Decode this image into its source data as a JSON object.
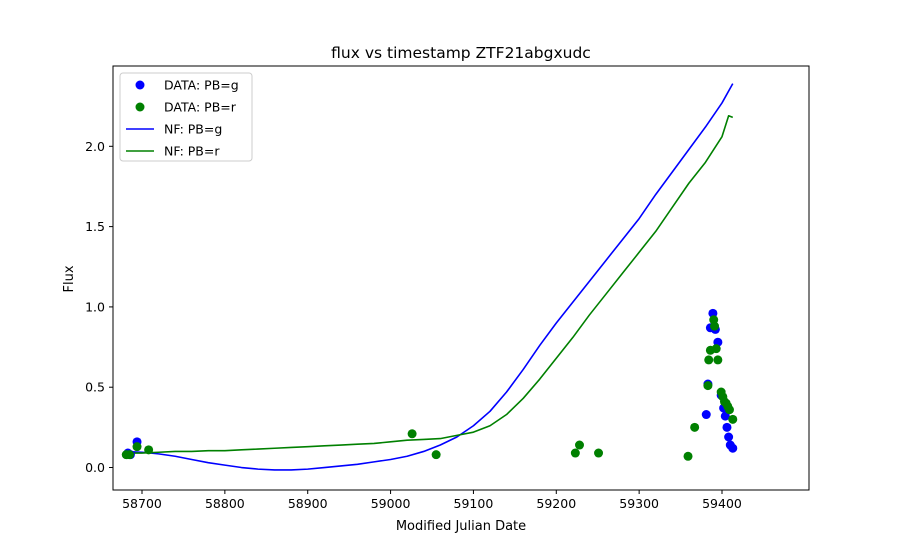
{
  "chart_data": {
    "type": "scatter",
    "title": "flux vs timestamp ZTF21abgxudc",
    "xlabel": "Modified Julian Date",
    "ylabel": "Flux",
    "xlim": [
      58665,
      59505
    ],
    "ylim": [
      -0.14,
      2.5
    ],
    "xticks": [
      58700,
      58800,
      58900,
      59000,
      59100,
      59200,
      59300,
      59400
    ],
    "xtick_labels": [
      "58700",
      "58800",
      "58900",
      "59000",
      "59100",
      "59200",
      "59300",
      "59400"
    ],
    "yticks": [
      0.0,
      0.5,
      1.0,
      1.5,
      2.0
    ],
    "ytick_labels": [
      "0.0",
      "0.5",
      "1.0",
      "1.5",
      "2.0"
    ],
    "grid": false,
    "legend_position": "top-left",
    "legend": [
      {
        "label": "DATA: PB=g",
        "kind": "marker",
        "color": "#0000ff"
      },
      {
        "label": "DATA: PB=r",
        "kind": "marker",
        "color": "#008000"
      },
      {
        "label": "NF: PB=g",
        "kind": "line",
        "color": "#0000ff"
      },
      {
        "label": "NF: PB=r",
        "kind": "line",
        "color": "#008000"
      }
    ],
    "series": [
      {
        "name": "DATA: PB=g",
        "kind": "scatter",
        "color": "#0000ff",
        "points": [
          [
            58683,
            0.09
          ],
          [
            58686,
            0.08
          ],
          [
            58694,
            0.16
          ],
          [
            59381,
            0.33
          ],
          [
            59383,
            0.52
          ],
          [
            59386,
            0.87
          ],
          [
            59389,
            0.96
          ],
          [
            59392,
            0.86
          ],
          [
            59395,
            0.78
          ],
          [
            59399,
            0.45
          ],
          [
            59402,
            0.37
          ],
          [
            59404,
            0.32
          ],
          [
            59406,
            0.25
          ],
          [
            59408,
            0.19
          ],
          [
            59410,
            0.14
          ],
          [
            59413,
            0.12
          ]
        ]
      },
      {
        "name": "DATA: PB=r",
        "kind": "scatter",
        "color": "#008000",
        "points": [
          [
            58681,
            0.08
          ],
          [
            58685,
            0.08
          ],
          [
            58694,
            0.13
          ],
          [
            58708,
            0.11
          ],
          [
            59026,
            0.21
          ],
          [
            59055,
            0.08
          ],
          [
            59223,
            0.09
          ],
          [
            59228,
            0.14
          ],
          [
            59251,
            0.09
          ],
          [
            59359,
            0.07
          ],
          [
            59367,
            0.25
          ],
          [
            59383,
            0.51
          ],
          [
            59384,
            0.67
          ],
          [
            59386,
            0.73
          ],
          [
            59390,
            0.92
          ],
          [
            59391,
            0.88
          ],
          [
            59393,
            0.74
          ],
          [
            59395,
            0.67
          ],
          [
            59399,
            0.47
          ],
          [
            59401,
            0.44
          ],
          [
            59403,
            0.41
          ],
          [
            59405,
            0.4
          ],
          [
            59407,
            0.38
          ],
          [
            59409,
            0.36
          ],
          [
            59413,
            0.3
          ]
        ]
      },
      {
        "name": "NF: PB=g",
        "kind": "line",
        "color": "#0000ff",
        "points": [
          [
            58680,
            0.1
          ],
          [
            58700,
            0.095
          ],
          [
            58720,
            0.085
          ],
          [
            58740,
            0.07
          ],
          [
            58760,
            0.05
          ],
          [
            58780,
            0.03
          ],
          [
            58800,
            0.015
          ],
          [
            58820,
            0.0
          ],
          [
            58840,
            -0.01
          ],
          [
            58860,
            -0.015
          ],
          [
            58880,
            -0.015
          ],
          [
            58900,
            -0.01
          ],
          [
            58920,
            0.0
          ],
          [
            58940,
            0.01
          ],
          [
            58960,
            0.02
          ],
          [
            58980,
            0.035
          ],
          [
            59000,
            0.05
          ],
          [
            59020,
            0.07
          ],
          [
            59040,
            0.1
          ],
          [
            59060,
            0.14
          ],
          [
            59080,
            0.19
          ],
          [
            59100,
            0.26
          ],
          [
            59120,
            0.35
          ],
          [
            59140,
            0.47
          ],
          [
            59160,
            0.61
          ],
          [
            59180,
            0.76
          ],
          [
            59200,
            0.9
          ],
          [
            59220,
            1.03
          ],
          [
            59240,
            1.16
          ],
          [
            59260,
            1.29
          ],
          [
            59280,
            1.42
          ],
          [
            59300,
            1.55
          ],
          [
            59320,
            1.7
          ],
          [
            59340,
            1.84
          ],
          [
            59360,
            1.98
          ],
          [
            59380,
            2.12
          ],
          [
            59400,
            2.27
          ],
          [
            59413,
            2.39
          ]
        ]
      },
      {
        "name": "NF: PB=r",
        "kind": "line",
        "color": "#008000",
        "points": [
          [
            58680,
            0.09
          ],
          [
            58700,
            0.09
          ],
          [
            58720,
            0.095
          ],
          [
            58740,
            0.1
          ],
          [
            58760,
            0.1
          ],
          [
            58780,
            0.105
          ],
          [
            58800,
            0.105
          ],
          [
            58820,
            0.11
          ],
          [
            58840,
            0.115
          ],
          [
            58860,
            0.12
          ],
          [
            58880,
            0.125
          ],
          [
            58900,
            0.13
          ],
          [
            58920,
            0.135
          ],
          [
            58940,
            0.14
          ],
          [
            58960,
            0.145
          ],
          [
            58980,
            0.15
          ],
          [
            59000,
            0.16
          ],
          [
            59020,
            0.17
          ],
          [
            59040,
            0.175
          ],
          [
            59060,
            0.18
          ],
          [
            59080,
            0.2
          ],
          [
            59100,
            0.22
          ],
          [
            59120,
            0.26
          ],
          [
            59140,
            0.33
          ],
          [
            59160,
            0.43
          ],
          [
            59180,
            0.55
          ],
          [
            59200,
            0.68
          ],
          [
            59220,
            0.81
          ],
          [
            59240,
            0.95
          ],
          [
            59260,
            1.08
          ],
          [
            59280,
            1.21
          ],
          [
            59300,
            1.34
          ],
          [
            59320,
            1.47
          ],
          [
            59340,
            1.62
          ],
          [
            59360,
            1.77
          ],
          [
            59380,
            1.9
          ],
          [
            59400,
            2.06
          ],
          [
            59408,
            2.19
          ],
          [
            59413,
            2.18
          ]
        ]
      }
    ]
  }
}
